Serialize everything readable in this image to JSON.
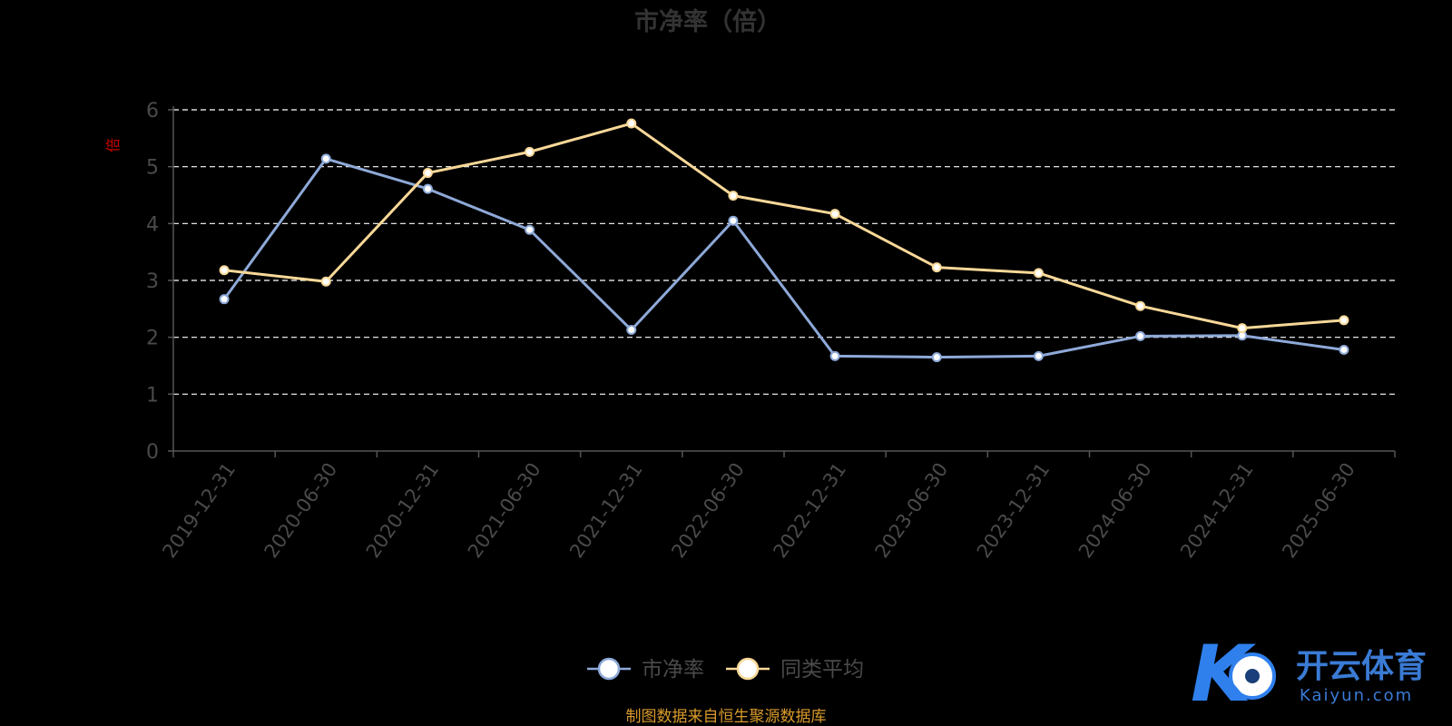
{
  "colors": {
    "series_1": "#8ea9d8",
    "series_2": "#f8d898",
    "logo": "#2f80ed"
  },
  "chart_data": {
    "type": "line",
    "title": "市净率（倍）",
    "ylabel": "倍",
    "xlabel": "",
    "ylim": [
      0,
      6
    ],
    "y_ticks": [
      "0",
      "1",
      "2",
      "3",
      "4",
      "5",
      "6"
    ],
    "grid": true,
    "legend_position": "bottom",
    "categories": [
      "2019-12-31",
      "2020-06-30",
      "2020-12-31",
      "2021-06-30",
      "2021-12-31",
      "2022-06-30",
      "2022-12-31",
      "2023-06-30",
      "2023-12-31",
      "2024-06-30",
      "2024-12-31",
      "2025-06-30"
    ],
    "series": [
      {
        "name": "市净率",
        "values": [
          2.67,
          5.14,
          4.61,
          3.89,
          2.13,
          4.05,
          1.67,
          1.65,
          1.67,
          2.02,
          2.03,
          1.78
        ]
      },
      {
        "name": "同类平均",
        "values": [
          3.18,
          2.98,
          4.89,
          5.26,
          5.76,
          4.49,
          4.17,
          3.23,
          3.13,
          2.55,
          2.16,
          2.3
        ]
      }
    ]
  },
  "footer": {
    "source": "制图数据来自恒生聚源数据库"
  },
  "watermark": {
    "brand": "开云体育",
    "domain": "Kaiyun.com",
    "mark": "K"
  }
}
